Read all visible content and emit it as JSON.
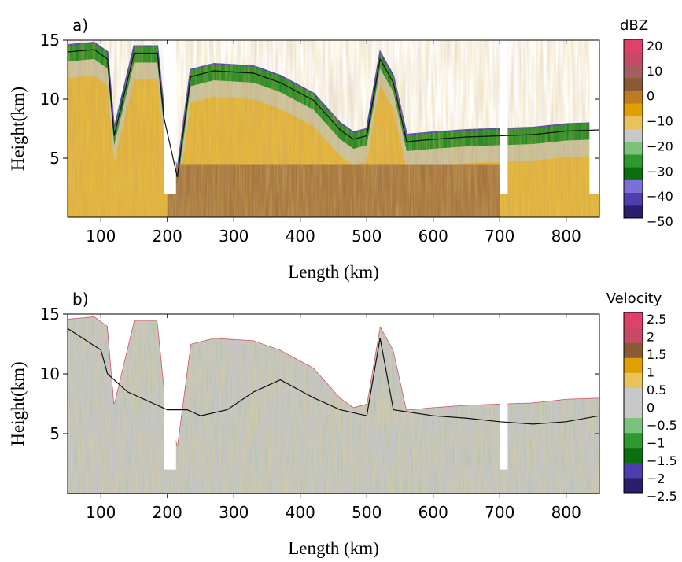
{
  "chart_data": [
    {
      "type": "heatmap",
      "panel_label": "a)",
      "xlabel": "Length (km)",
      "ylabel": "Height(km)",
      "xlim": [
        50,
        850
      ],
      "ylim": [
        0,
        15
      ],
      "x_ticks": [
        "100",
        "200",
        "300",
        "400",
        "500",
        "600",
        "700",
        "800"
      ],
      "y_ticks": [
        "5",
        "10",
        "15"
      ],
      "colorbar": {
        "title": "dBZ",
        "range": [
          -50,
          20
        ],
        "tick_labels": [
          "20",
          "10",
          "0",
          "−10",
          "−20",
          "−30",
          "−40",
          "−50"
        ],
        "colors": [
          "#2a1f6e",
          "#4b3fb0",
          "#7a70d8",
          "#0d6e0d",
          "#2e9a2e",
          "#7cc27c",
          "#c8c8c8",
          "#e8c25a",
          "#e0a000",
          "#c07a20",
          "#8a5a35",
          "#a06060",
          "#c84868",
          "#e0406a"
        ]
      },
      "cloud_top_km": [
        [
          50,
          14.6
        ],
        [
          90,
          14.8
        ],
        [
          110,
          14.0
        ],
        [
          120,
          7.5
        ],
        [
          150,
          14.5
        ],
        [
          185,
          14.5
        ],
        [
          195,
          9.0
        ],
        [
          215,
          4.0
        ],
        [
          235,
          12.5
        ],
        [
          270,
          13.0
        ],
        [
          330,
          12.8
        ],
        [
          370,
          12.0
        ],
        [
          420,
          10.5
        ],
        [
          460,
          8.0
        ],
        [
          480,
          7.2
        ],
        [
          500,
          7.5
        ],
        [
          520,
          14.0
        ],
        [
          540,
          12.0
        ],
        [
          560,
          7.0
        ],
        [
          600,
          7.2
        ],
        [
          650,
          7.4
        ],
        [
          700,
          7.5
        ],
        [
          750,
          7.6
        ],
        [
          800,
          7.9
        ],
        [
          850,
          8.0
        ]
      ],
      "melting_layer_km": 4.5
    },
    {
      "type": "heatmap",
      "panel_label": "b)",
      "xlabel": "Length (km)",
      "ylabel": "Height(km)",
      "xlim": [
        50,
        850
      ],
      "ylim": [
        0,
        15
      ],
      "x_ticks": [
        "100",
        "200",
        "300",
        "400",
        "500",
        "600",
        "700",
        "800"
      ],
      "y_ticks": [
        "5",
        "10",
        "15"
      ],
      "colorbar": {
        "title": "Velocity",
        "range": [
          -2.5,
          2.5
        ],
        "tick_labels": [
          "2.5",
          "2",
          "1.5",
          "1",
          "0.5",
          "0",
          "−0.5",
          "−1",
          "−1.5",
          "−2",
          "−2.5"
        ],
        "colors": [
          "#2a1f6e",
          "#4b3fb0",
          "#0d6e0d",
          "#2e9a2e",
          "#7cc27c",
          "#c8c8c8",
          "#c8c8c8",
          "#e8c25a",
          "#e0a000",
          "#8a5a35",
          "#c84868",
          "#e0406a"
        ]
      },
      "contour_line_km": [
        [
          50,
          13.8
        ],
        [
          100,
          12.0
        ],
        [
          110,
          10.0
        ],
        [
          140,
          8.5
        ],
        [
          180,
          7.5
        ],
        [
          200,
          7.0
        ],
        [
          230,
          7.0
        ],
        [
          250,
          6.5
        ],
        [
          290,
          7.0
        ],
        [
          330,
          8.5
        ],
        [
          370,
          9.5
        ],
        [
          420,
          8.0
        ],
        [
          460,
          7.0
        ],
        [
          500,
          6.5
        ],
        [
          520,
          13.0
        ],
        [
          540,
          7.0
        ],
        [
          600,
          6.5
        ],
        [
          650,
          6.3
        ],
        [
          700,
          6.0
        ],
        [
          750,
          5.8
        ],
        [
          800,
          6.0
        ],
        [
          850,
          6.5
        ]
      ]
    }
  ]
}
